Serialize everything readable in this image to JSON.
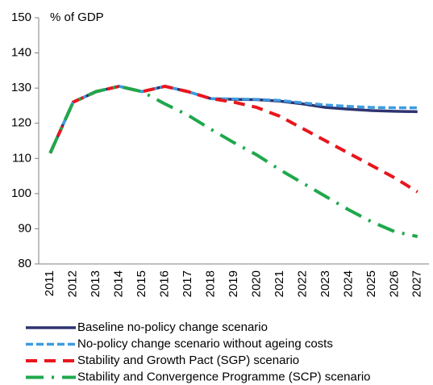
{
  "chart_data": {
    "type": "line",
    "y_axis_label": "% of GDP",
    "categories": [
      "2011",
      "2012",
      "2013",
      "2014",
      "2015",
      "2016",
      "2017",
      "2018",
      "2019",
      "2020",
      "2021",
      "2022",
      "2023",
      "2024",
      "2025",
      "2026",
      "2027"
    ],
    "series": [
      {
        "name": "Baseline no-policy change scenario",
        "color": "#2e3470",
        "values": [
          111.5,
          126,
          129,
          130.5,
          129,
          130.5,
          129,
          127,
          126.8,
          126.7,
          126.3,
          125.5,
          124.5,
          124,
          123.6,
          123.4,
          123.3
        ]
      },
      {
        "name": "No-policy change scenario without ageing costs",
        "color": "#3d9be0",
        "values": [
          111.5,
          126,
          129,
          130.5,
          129,
          130.5,
          129,
          127,
          126.9,
          126.8,
          126.5,
          125.8,
          125.2,
          124.8,
          124.5,
          124.4,
          124.4
        ]
      },
      {
        "name": "Stability and Growth Pact (SGP) scenario",
        "color": "#e8161d",
        "values": [
          111.5,
          126,
          129,
          130.5,
          129,
          130.5,
          129,
          127,
          126,
          124.5,
          122,
          118.5,
          115,
          111.5,
          108,
          104.5,
          100.5
        ]
      },
      {
        "name": "Stability and Convergence Programme (SCP) scenario",
        "color": "#1fa84c",
        "values": [
          111.5,
          126,
          129,
          130.5,
          129,
          125.5,
          122.3,
          118.3,
          114.5,
          111,
          106.8,
          103,
          99.2,
          95.4,
          92,
          89.2,
          87.8
        ]
      }
    ],
    "ylim": [
      80,
      150
    ],
    "yticks": [
      80,
      90,
      100,
      110,
      120,
      130,
      140,
      150
    ],
    "grid": false
  }
}
